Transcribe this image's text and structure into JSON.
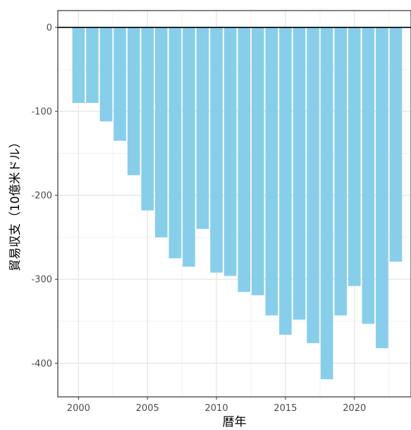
{
  "chart_data": {
    "type": "bar",
    "title": "",
    "xlabel": "暦年",
    "ylabel": "貿易収支（10億米ドル）",
    "x": [
      2000,
      2001,
      2002,
      2003,
      2004,
      2005,
      2006,
      2007,
      2008,
      2009,
      2010,
      2011,
      2012,
      2013,
      2014,
      2015,
      2016,
      2017,
      2018,
      2019,
      2020,
      2021,
      2022,
      2023
    ],
    "values": [
      -90,
      -90,
      -112,
      -135,
      -176,
      -218,
      -250,
      -275,
      -285,
      -240,
      -292,
      -296,
      -315,
      -319,
      -343,
      -366,
      -348,
      -376,
      -419,
      -343,
      -308,
      -353,
      -382,
      -279
    ],
    "xlim": [
      1998.5,
      2024.1
    ],
    "ylim": [
      -440,
      20
    ],
    "x_ticks": [
      2000,
      2005,
      2010,
      2015,
      2020
    ],
    "x_tick_labels": [
      "2000",
      "2005",
      "2010",
      "2015",
      "2020"
    ],
    "y_ticks": [
      0,
      -100,
      -200,
      -300,
      -400
    ],
    "y_tick_labels": [
      "0",
      "-100",
      "-200",
      "-300",
      "-400"
    ],
    "grid": true,
    "zero_line": true,
    "colors": {
      "bar": "#87ceeb",
      "grid_major": "#e5e5e5",
      "grid_minor": "#f2f2f2",
      "frame": "#333333",
      "zero_line": "#000000",
      "tick_text": "#4d4d4d"
    }
  }
}
